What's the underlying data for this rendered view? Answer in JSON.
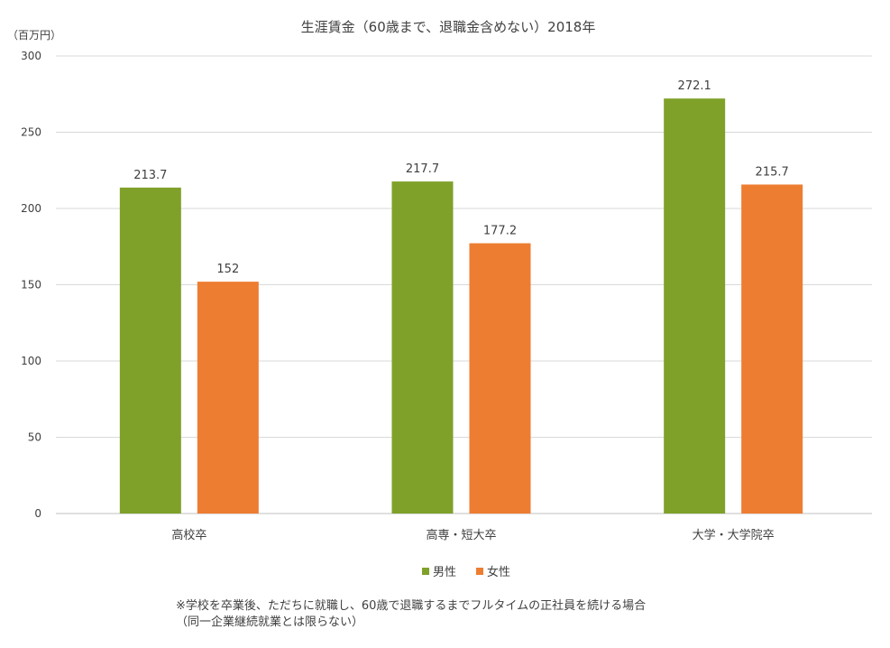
{
  "chart_data": {
    "type": "bar",
    "title": "生涯賃金（60歳まで、退職金含めない）2018年",
    "unit_label": "（百万円）",
    "categories": [
      "高校卒",
      "高専・短大卒",
      "大学・大学院卒"
    ],
    "series": [
      {
        "name": "男性",
        "color": "#7fa12a",
        "values": [
          213.7,
          217.7,
          272.1
        ],
        "labels": [
          "213.7",
          "217.7",
          "272.1"
        ]
      },
      {
        "name": "女性",
        "color": "#ed7d31",
        "values": [
          152,
          177.2,
          215.7
        ],
        "labels": [
          "152",
          "177.2",
          "215.7"
        ]
      }
    ],
    "ylim": [
      0,
      300
    ],
    "yticks": [
      0,
      50,
      100,
      150,
      200,
      250,
      300
    ],
    "grid": true,
    "legend_position": "bottom-center",
    "notes": [
      "※学校を卒業後、ただちに就職し、60歳で退職するまでフルタイムの正社員を続ける場合",
      "（同一企業継続就業とは限らない）"
    ]
  }
}
